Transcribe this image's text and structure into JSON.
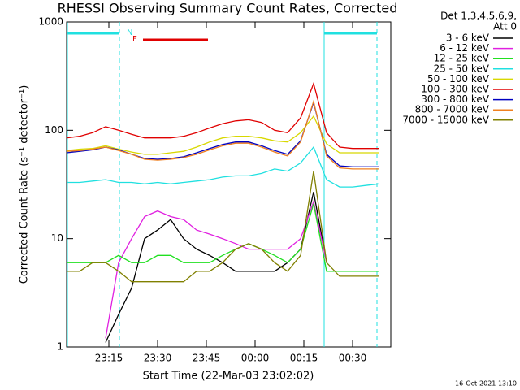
{
  "chart_data": {
    "type": "line",
    "title": "RHESSI Observing Summary Count Rates, Corrected",
    "xlabel": "Start Time (22-Mar-03 23:02:02)",
    "ylabel": "Corrected Count Rate (s⁻¹ detector⁻¹)",
    "legend_header": [
      "Det 1,3,4,5,6,9,",
      "Att 0"
    ],
    "timestamp": "16-Oct-2021 13:10",
    "annotations": [
      "N",
      "F"
    ],
    "log_y": true,
    "x": [
      2,
      6,
      10,
      14,
      18,
      22,
      26,
      30,
      34,
      38,
      42,
      46,
      50,
      54,
      58,
      62,
      66,
      70,
      74,
      78,
      82,
      86,
      90,
      94,
      98
    ],
    "xlim": [
      2,
      102
    ],
    "xticks": [
      {
        "value": 15,
        "label": "23:15"
      },
      {
        "value": 30,
        "label": "23:30"
      },
      {
        "value": 45,
        "label": "23:45"
      },
      {
        "value": 60,
        "label": "00:00"
      },
      {
        "value": 75,
        "label": "00:15"
      },
      {
        "value": 90,
        "label": "00:30"
      }
    ],
    "ylim": [
      1,
      1000
    ],
    "yticks": [
      1,
      10,
      100,
      1000
    ],
    "series": [
      {
        "name": "3 - 6 keV",
        "color": "#000000",
        "values": [
          null,
          null,
          null,
          1.1,
          2,
          3.5,
          10,
          12,
          15,
          10,
          8,
          7,
          6,
          5,
          5,
          5,
          5,
          6,
          8,
          27,
          6,
          null,
          null,
          null,
          null
        ]
      },
      {
        "name": "6 - 12 keV",
        "color": "#e020e0",
        "values": [
          null,
          null,
          null,
          1.2,
          6,
          10,
          16,
          18,
          16,
          15,
          12,
          11,
          10,
          9,
          8,
          8,
          8,
          8,
          10,
          22,
          6,
          null,
          null,
          null,
          null
        ]
      },
      {
        "name": "12 - 25 keV",
        "color": "#20e020",
        "values": [
          6,
          6,
          6,
          6,
          7,
          6,
          6,
          7,
          7,
          6,
          6,
          6,
          7,
          8,
          9,
          8,
          7,
          6,
          8,
          21,
          5,
          5,
          5,
          5,
          5
        ]
      },
      {
        "name": "25 - 50 keV",
        "color": "#20e0e0",
        "values": [
          33,
          33,
          34,
          35,
          33,
          33,
          32,
          33,
          32,
          33,
          34,
          35,
          37,
          38,
          38,
          40,
          44,
          42,
          50,
          70,
          35,
          30,
          30,
          31,
          32
        ]
      },
      {
        "name": "50 - 100 keV",
        "color": "#d8d800",
        "values": [
          65,
          67,
          68,
          72,
          67,
          63,
          60,
          60,
          62,
          64,
          70,
          78,
          85,
          88,
          88,
          85,
          80,
          78,
          95,
          135,
          75,
          62,
          62,
          62,
          62
        ]
      },
      {
        "name": "100 - 300 keV",
        "color": "#e00000",
        "values": [
          85,
          88,
          95,
          108,
          100,
          92,
          85,
          85,
          85,
          88,
          95,
          105,
          115,
          122,
          125,
          118,
          100,
          95,
          130,
          270,
          95,
          70,
          68,
          68,
          68
        ]
      },
      {
        "name": "300 - 800 keV",
        "color": "#0000c0",
        "values": [
          62,
          64,
          66,
          70,
          66,
          60,
          55,
          54,
          55,
          57,
          62,
          68,
          74,
          78,
          78,
          72,
          65,
          60,
          80,
          180,
          60,
          47,
          46,
          46,
          46
        ]
      },
      {
        "name": "800 - 7000 keV",
        "color": "#f08020",
        "values": [
          64,
          65,
          67,
          70,
          65,
          60,
          54,
          53,
          54,
          56,
          60,
          66,
          72,
          76,
          76,
          70,
          63,
          58,
          78,
          185,
          58,
          45,
          44,
          44,
          44
        ]
      },
      {
        "name": "7000 - 15000 keV",
        "color": "#808000",
        "values": [
          5,
          5,
          6,
          6,
          5,
          4,
          4,
          4,
          4,
          4,
          5,
          5,
          6,
          8,
          9,
          8,
          6,
          5,
          7,
          42,
          6,
          4.5,
          4.5,
          4.5,
          4.5
        ]
      }
    ]
  }
}
